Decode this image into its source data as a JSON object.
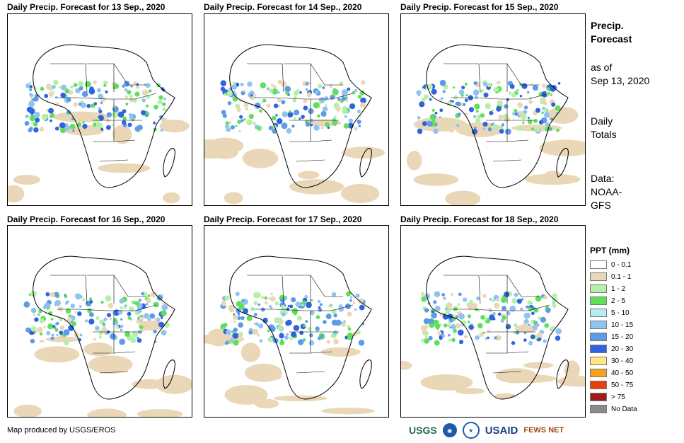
{
  "panels": [
    {
      "title": "Daily Precip. Forecast for 13 Sep., 2020"
    },
    {
      "title": "Daily Precip. Forecast for 14 Sep., 2020"
    },
    {
      "title": "Daily Precip. Forecast for 15 Sep., 2020"
    },
    {
      "title": "Daily Precip. Forecast for 16 Sep., 2020"
    },
    {
      "title": "Daily Precip. Forecast for 17 Sep., 2020"
    },
    {
      "title": "Daily Precip. Forecast for 18 Sep., 2020"
    }
  ],
  "side": {
    "title_line1": "Precip.",
    "title_line2": "Forecast",
    "asof_line1": "as of",
    "asof_line2": "Sep 13, 2020",
    "totals_line1": "Daily",
    "totals_line2": "Totals",
    "data_line1": "Data:",
    "data_line2": "NOAA-",
    "data_line3": "GFS"
  },
  "legend": {
    "title": "PPT (mm)",
    "items": [
      {
        "label": "0 - 0.1",
        "color": "#ffffff"
      },
      {
        "label": "0.1 - 1",
        "color": "#e9d7b7"
      },
      {
        "label": "1 - 2",
        "color": "#b5f0a8"
      },
      {
        "label": "2 - 5",
        "color": "#5ee05a"
      },
      {
        "label": "5 - 10",
        "color": "#b4eef4"
      },
      {
        "label": "10 - 15",
        "color": "#8fc3f2"
      },
      {
        "label": "15 - 20",
        "color": "#5d9be8"
      },
      {
        "label": "20 - 30",
        "color": "#2f63df"
      },
      {
        "label": "30 - 40",
        "color": "#ffe680"
      },
      {
        "label": "40 - 50",
        "color": "#f9a21b"
      },
      {
        "label": "50 - 75",
        "color": "#e8400d"
      },
      {
        "label": "> 75",
        "color": "#a31a1a"
      },
      {
        "label": "No Data",
        "color": "#8a8a8a"
      }
    ]
  },
  "footer": {
    "credit": "Map produced by USGS/EROS"
  },
  "logos": {
    "usgs": "USGS",
    "usaid": "USAID",
    "fews": "FEWS NET"
  }
}
